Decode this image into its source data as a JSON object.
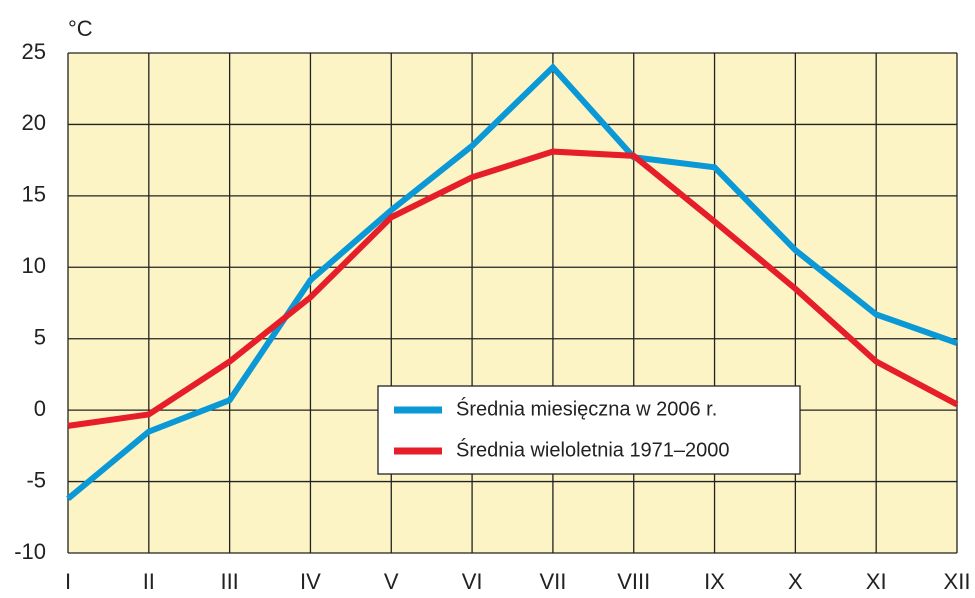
{
  "chart_data": {
    "type": "line",
    "y_label": "°C",
    "categories": [
      "I",
      "II",
      "III",
      "IV",
      "V",
      "VI",
      "VII",
      "VIII",
      "IX",
      "X",
      "XI",
      "XII"
    ],
    "series": [
      {
        "name": "Średnia miesięczna w 2006 r.",
        "color": "#0b98d6",
        "values": [
          -6.2,
          -1.5,
          0.7,
          9.1,
          14.0,
          18.5,
          24.0,
          17.7,
          17.0,
          11.2,
          6.7,
          4.7
        ]
      },
      {
        "name": "Średnia wieloletnia 1971–2000",
        "color": "#e61e2a",
        "values": [
          -1.1,
          -0.3,
          3.4,
          7.9,
          13.5,
          16.3,
          18.1,
          17.8,
          13.2,
          8.5,
          3.4,
          0.4
        ]
      }
    ],
    "ylim": [
      -10,
      25
    ],
    "yticks": [
      -10,
      -5,
      0,
      5,
      10,
      15,
      20,
      25
    ],
    "grid": true,
    "legend": "center"
  }
}
